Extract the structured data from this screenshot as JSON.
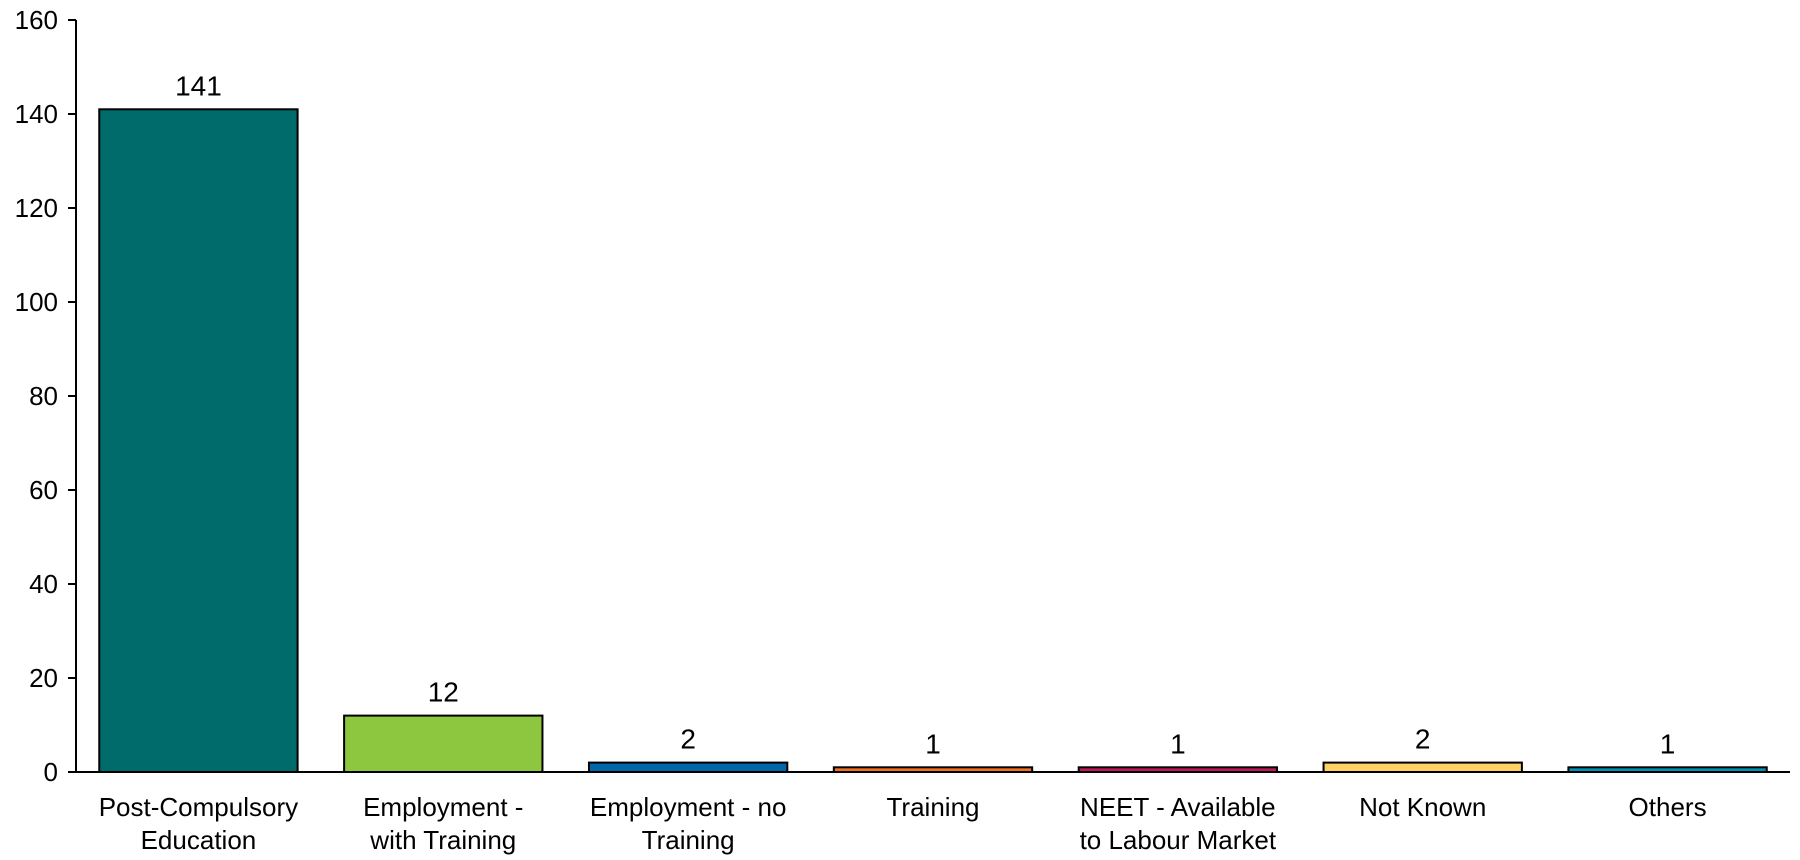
{
  "chart_data": {
    "type": "bar",
    "categories": [
      [
        "Post-Compulsory",
        "Education"
      ],
      [
        "Employment -",
        "with Training"
      ],
      [
        "Employment - no",
        "Training"
      ],
      [
        "Training"
      ],
      [
        "NEET - Available",
        "to Labour Market"
      ],
      [
        "Not Known"
      ],
      [
        "Others"
      ]
    ],
    "values": [
      141,
      12,
      2,
      1,
      1,
      2,
      1
    ],
    "colors": [
      "#006B6B",
      "#8DC63F",
      "#0067A9",
      "#F37021",
      "#C2185B",
      "#FFD166",
      "#0093B8"
    ],
    "ylim": [
      0,
      160
    ],
    "yticks": [
      0,
      20,
      40,
      60,
      80,
      100,
      120,
      140,
      160
    ],
    "title": "",
    "xlabel": "",
    "ylabel": "",
    "grid": false,
    "data_labels": true
  }
}
